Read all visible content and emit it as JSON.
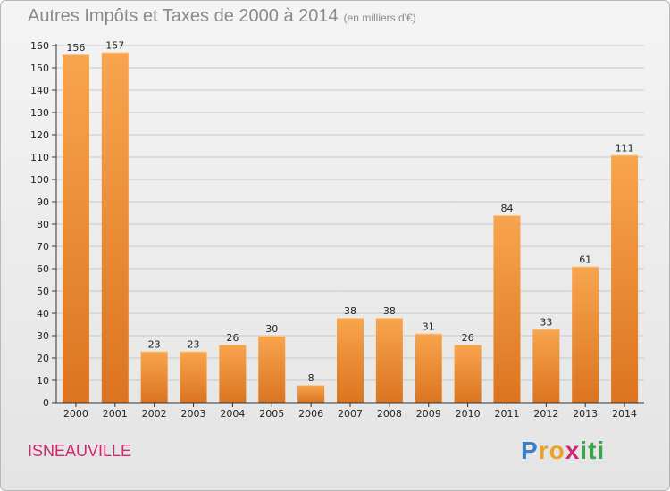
{
  "header": {
    "title": "Autres Impôts et Taxes de 2000 à 2014",
    "subtitle": "(en milliers d'€)"
  },
  "footer": {
    "city": "ISNEAUVILLE",
    "logo_letters": [
      "P",
      "r",
      "o",
      "x",
      "i",
      "t",
      "i"
    ],
    "logo_colors": [
      "#3a7fc4",
      "#e8a32a",
      "#e8a32a",
      "#d0286e",
      "#3aa64a",
      "#3aa64a",
      "#3aa64a"
    ]
  },
  "colors": {
    "bar_light": "#f8a54e",
    "bar_dark": "#dc7420",
    "grid": "#c8c8c8",
    "axis": "#333333",
    "text": "#222222"
  },
  "chart_data": {
    "type": "bar",
    "title": "Autres Impôts et Taxes de 2000 à 2014",
    "subtitle": "(en milliers d'€)",
    "categories": [
      "2000",
      "2001",
      "2002",
      "2003",
      "2004",
      "2005",
      "2006",
      "2007",
      "2008",
      "2009",
      "2010",
      "2011",
      "2012",
      "2013",
      "2014"
    ],
    "values": [
      156,
      157,
      23,
      23,
      26,
      30,
      8,
      38,
      38,
      31,
      26,
      84,
      33,
      61,
      111
    ],
    "ylim": [
      0,
      160
    ],
    "yticks": [
      0,
      10,
      20,
      30,
      40,
      50,
      60,
      70,
      80,
      90,
      100,
      110,
      120,
      130,
      140,
      150,
      160
    ],
    "grid": true,
    "xlabel": "",
    "ylabel": ""
  }
}
